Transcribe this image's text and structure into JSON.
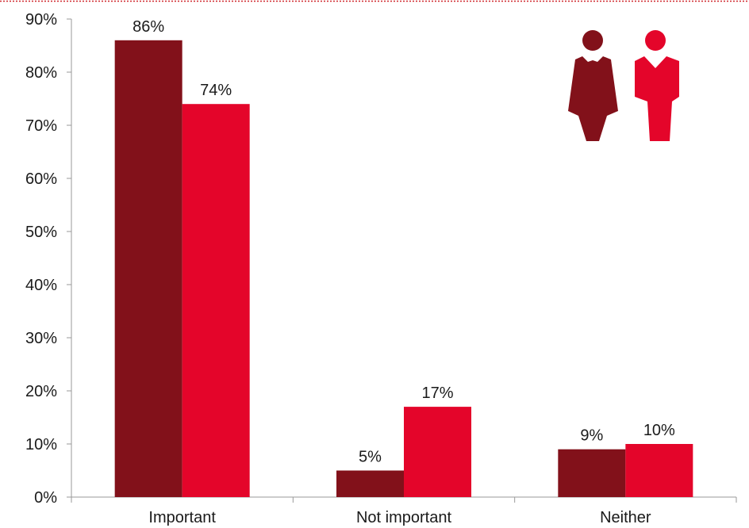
{
  "chart_data": {
    "type": "bar",
    "title": "",
    "xlabel": "",
    "ylabel": "",
    "categories": [
      "Important",
      "Not important",
      "Neither"
    ],
    "series": [
      {
        "color": "#82111a",
        "icon": "woman-icon",
        "values": [
          86,
          5,
          9
        ],
        "labels": [
          "86%",
          "5%",
          "9%"
        ]
      },
      {
        "color": "#e4052a",
        "icon": "man-icon",
        "values": [
          74,
          17,
          10
        ],
        "labels": [
          "74%",
          "17%",
          "10%"
        ]
      }
    ],
    "ylim": [
      0,
      90
    ],
    "yticks": [
      "0%",
      "10%",
      "20%",
      "30%",
      "40%",
      "50%",
      "60%",
      "70%",
      "80%",
      "90%"
    ],
    "value_unit": "percent",
    "grid": false,
    "legend": "pictogram top-right",
    "top_border_color": "#d0282e"
  }
}
